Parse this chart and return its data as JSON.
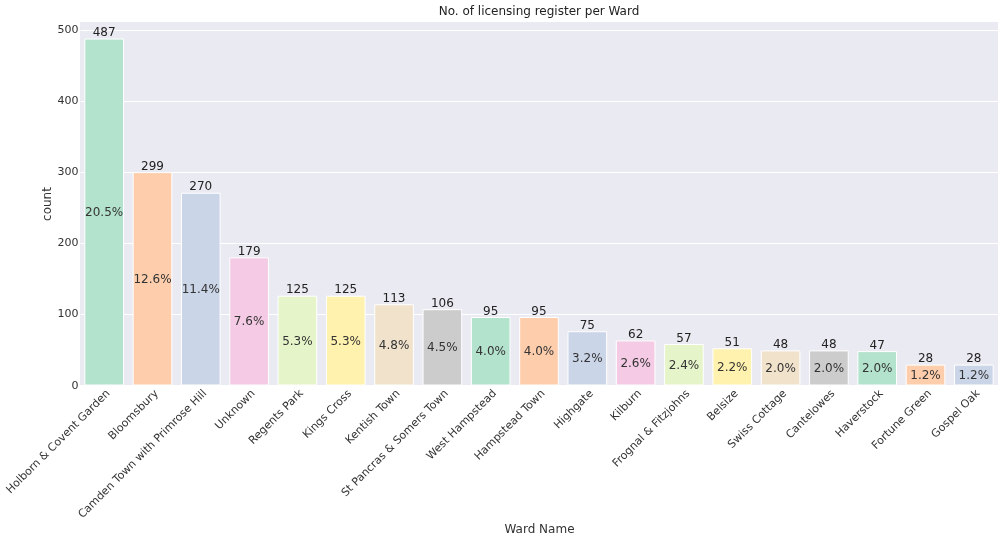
{
  "chart_data": {
    "type": "bar",
    "title": "No. of licensing register per Ward",
    "xlabel": "Ward Name",
    "ylabel": "count",
    "categories": [
      "Holborn & Covent Garden",
      "Bloomsbury",
      "Camden Town with Primrose Hill",
      "Unknown",
      "Regents Park",
      "Kings Cross",
      "Kentish Town",
      "St Pancras & Somers Town",
      "West Hampstead",
      "Hampstead Town",
      "Highgate",
      "Kilburn",
      "Frognal & Fitzjohns",
      "Belsize",
      "Swiss Cottage",
      "Cantelowes",
      "Haverstock",
      "Fortune Green",
      "Gospel Oak"
    ],
    "values": [
      487,
      299,
      270,
      179,
      125,
      125,
      113,
      106,
      95,
      95,
      75,
      62,
      57,
      51,
      48,
      48,
      47,
      28,
      28
    ],
    "colors": [
      "#b3e2cd",
      "#fdcdac",
      "#cbd5e8",
      "#f4cae4",
      "#e6f5c9",
      "#fff2ae",
      "#f1e2cc",
      "#cccccc",
      "#b3e2cd",
      "#fdcdac",
      "#cbd5e8",
      "#f4cae4",
      "#e6f5c9",
      "#fff2ae",
      "#f1e2cc",
      "#cccccc",
      "#b3e2cd",
      "#fdcdac",
      "#cbd5e8"
    ],
    "data_labels": true,
    "annotations": [
      "20.5%",
      "12.6%",
      "11.4%",
      "7.6%",
      "5.3%",
      "5.3%",
      "4.8%",
      "4.5%",
      "4.0%",
      "4.0%",
      "3.2%",
      "2.6%",
      "2.4%",
      "2.2%",
      "2.0%",
      "2.0%",
      "2.0%",
      "1.2%",
      "1.2%"
    ],
    "ylim": [
      0,
      511
    ],
    "yticks": [
      0,
      100,
      200,
      300,
      400,
      500
    ],
    "grid": "y"
  }
}
